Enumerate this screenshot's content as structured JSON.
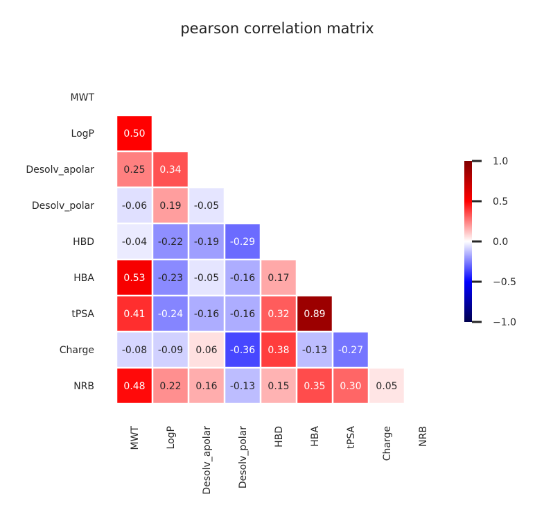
{
  "chart_data": {
    "type": "heatmap",
    "title": "pearson correlation matrix",
    "row_labels": [
      "MWT",
      "LogP",
      "Desolv_apolar",
      "Desolv_polar",
      "HBD",
      "HBA",
      "tPSA",
      "Charge",
      "NRB"
    ],
    "col_labels": [
      "MWT",
      "LogP",
      "Desolv_apolar",
      "Desolv_polar",
      "HBD",
      "HBA",
      "tPSA",
      "Charge",
      "NRB"
    ],
    "mask": "upper-triangle-and-diagonal",
    "matrix": [
      [
        null,
        null,
        null,
        null,
        null,
        null,
        null,
        null,
        null
      ],
      [
        0.5,
        null,
        null,
        null,
        null,
        null,
        null,
        null,
        null
      ],
      [
        0.25,
        0.34,
        null,
        null,
        null,
        null,
        null,
        null,
        null
      ],
      [
        -0.06,
        0.19,
        -0.05,
        null,
        null,
        null,
        null,
        null,
        null
      ],
      [
        -0.04,
        -0.22,
        -0.19,
        -0.29,
        null,
        null,
        null,
        null,
        null
      ],
      [
        0.53,
        -0.23,
        -0.05,
        -0.16,
        0.17,
        null,
        null,
        null,
        null
      ],
      [
        0.41,
        -0.24,
        -0.16,
        -0.16,
        0.32,
        0.89,
        null,
        null,
        null
      ],
      [
        -0.08,
        -0.09,
        0.06,
        -0.36,
        0.38,
        -0.13,
        -0.27,
        null,
        null
      ],
      [
        0.48,
        0.22,
        0.16,
        -0.13,
        0.15,
        0.35,
        0.3,
        0.05,
        null
      ]
    ],
    "colormap": "seismic",
    "vmin": -1.0,
    "vmax": 1.0,
    "colorbar": {
      "ticks": [
        1.0,
        0.5,
        0.0,
        -0.5,
        -1.0
      ],
      "tick_labels": [
        "1.0",
        "0.5",
        "0.0",
        "−0.5",
        "−1.0"
      ]
    },
    "annot_format": "0.00",
    "grid": false
  }
}
